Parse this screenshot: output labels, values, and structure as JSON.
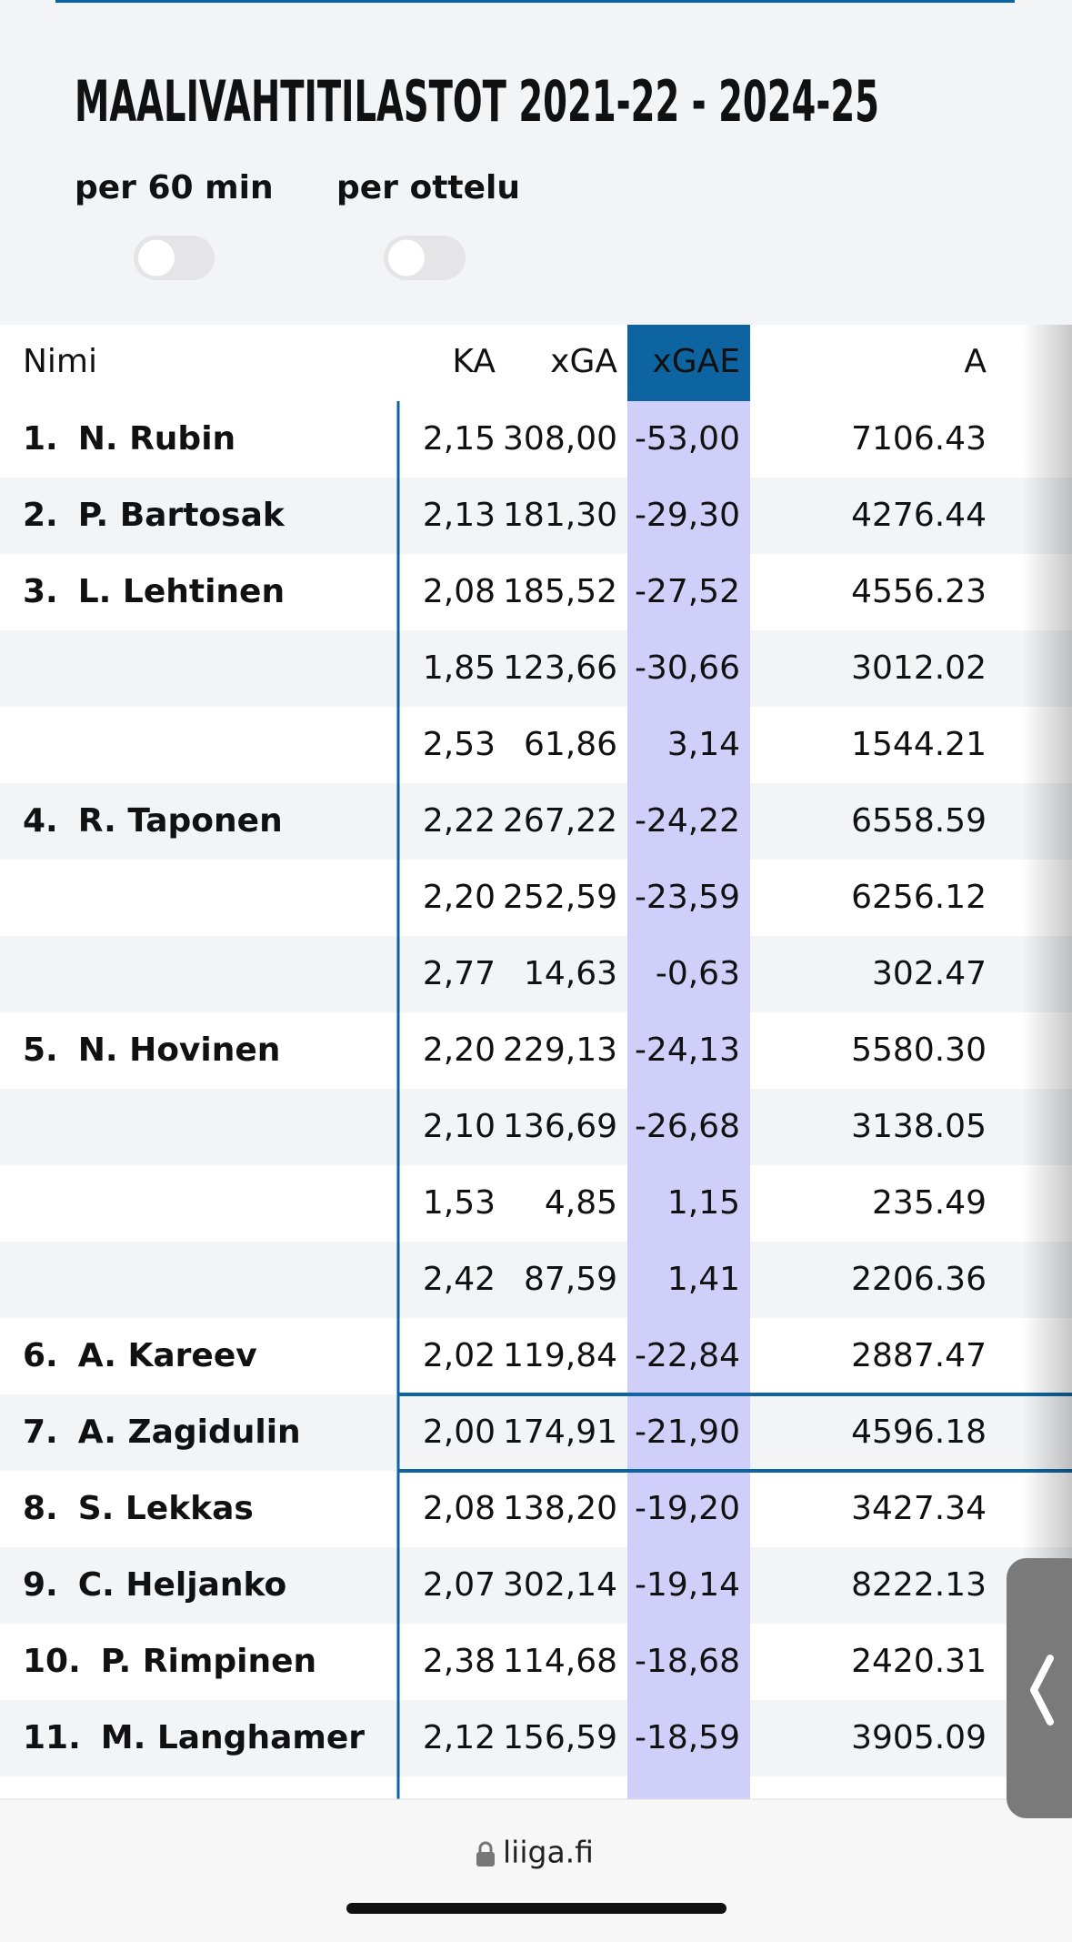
{
  "header": {
    "title": "MAALIVAHTITILASTOT 2021-22 - 2024-25",
    "toggles": [
      "per 60 min",
      "per ottelu"
    ]
  },
  "table": {
    "columns": [
      "Nimi",
      "KA",
      "xGA",
      "xGAE",
      "A"
    ],
    "rows": [
      [
        "1.",
        "N. Rubin",
        "2,15",
        "308,00",
        "-53,00",
        "7106.43"
      ],
      [
        "2.",
        "P. Bartosak",
        "2,13",
        "181,30",
        "-29,30",
        "4276.44"
      ],
      [
        "3.",
        "L. Lehtinen",
        "2,08",
        "185,52",
        "-27,52",
        "4556.23"
      ],
      [
        null,
        null,
        "1,85",
        "123,66",
        "-30,66",
        "3012.02"
      ],
      [
        null,
        null,
        "2,53",
        "61,86",
        "3,14",
        "1544.21"
      ],
      [
        "4.",
        "R. Taponen",
        "2,22",
        "267,22",
        "-24,22",
        "6558.59"
      ],
      [
        null,
        null,
        "2,20",
        "252,59",
        "-23,59",
        "6256.12"
      ],
      [
        null,
        null,
        "2,77",
        "14,63",
        "-0,63",
        "302.47"
      ],
      [
        "5.",
        "N. Hovinen",
        "2,20",
        "229,13",
        "-24,13",
        "5580.30"
      ],
      [
        null,
        null,
        "2,10",
        "136,69",
        "-26,68",
        "3138.05"
      ],
      [
        null,
        null,
        "1,53",
        "4,85",
        "1,15",
        "235.49"
      ],
      [
        null,
        null,
        "2,42",
        "87,59",
        "1,41",
        "2206.36"
      ],
      [
        "6.",
        "A. Kareev",
        "2,02",
        "119,84",
        "-22,84",
        "2887.47"
      ],
      [
        "7.",
        "A. Zagidulin",
        "2,00",
        "174,91",
        "-21,90",
        "4596.18"
      ],
      [
        "8.",
        "S. Lekkas",
        "2,08",
        "138,20",
        "-19,20",
        "3427.34"
      ],
      [
        "9.",
        "C. Heljanko",
        "2,07",
        "302,14",
        "-19,14",
        "8222.13"
      ],
      [
        "10.",
        "P. Rimpinen",
        "2,38",
        "114,68",
        "-18,68",
        "2420.31"
      ],
      [
        "11.",
        "M. Langhamer",
        "2,12",
        "156,59",
        "-18,59",
        "3905.09"
      ]
    ]
  },
  "footer": {
    "url": "liiga.fi"
  }
}
